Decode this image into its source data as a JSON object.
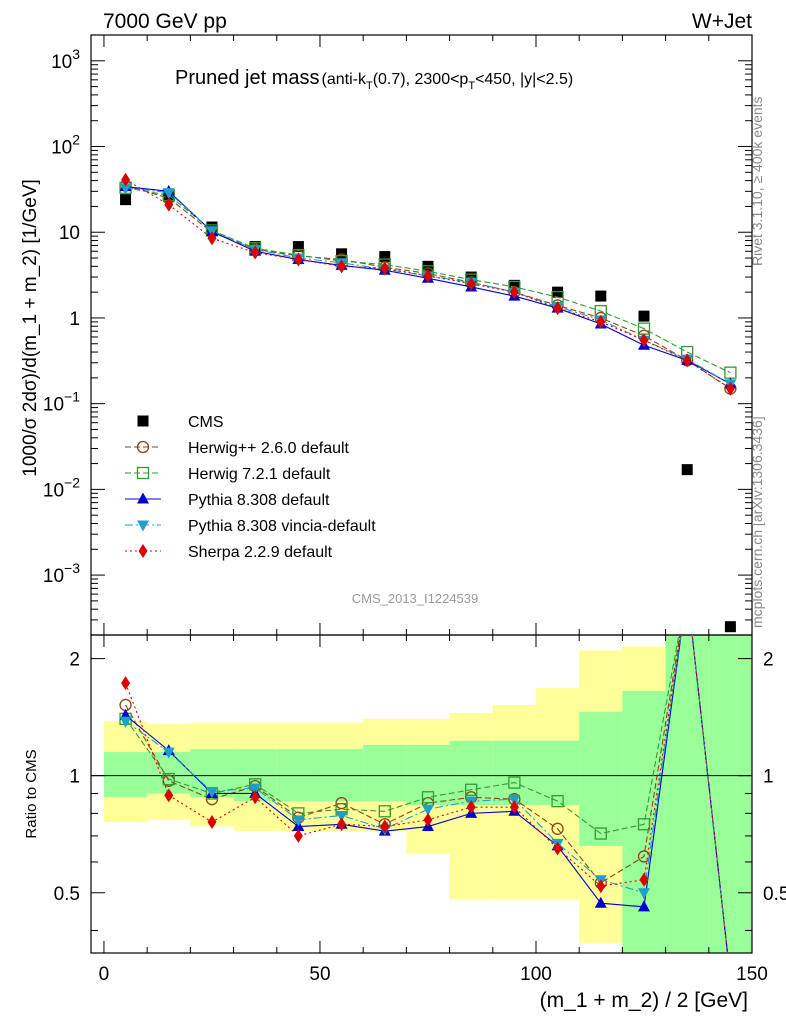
{
  "header": {
    "left": "7000 GeV pp",
    "right": "W+Jet",
    "title_main": "Pruned jet mass",
    "title_sub": "(anti-k",
    "title_sub_k_subscript": "T",
    "title_sub_mid": "(0.7), 2300<p",
    "title_sub_pt_subscript": "T",
    "title_sub_end": "<450, |y|<2.5)",
    "rivet_label": "Rivet 3.1.10, ≥ 400k events",
    "mcplots_label": "mcplots.cern.ch [arXiv:1306.3436]",
    "analysis_id": "CMS_2013_I1224539"
  },
  "chart_data": {
    "type": "scatter",
    "xlabel": "(m_1 + m_2) / 2 [GeV]",
    "ylabel": "1000/σ 2dσ)/d(m_1 + m_2) [1/GeV]",
    "ratio_ylabel": "Ratio to CMS",
    "xlim": [
      -3,
      150
    ],
    "ylim": [
      0.0002,
      2000
    ],
    "yscale": "log",
    "ratio_ylim": [
      0.35,
      2.3
    ],
    "ratio_yscale": "log",
    "x_ticks": [
      "0",
      "50",
      "100",
      "150"
    ],
    "y_ticks": [
      {
        "base": "10",
        "exp": "3"
      },
      {
        "base": "10",
        "exp": "2"
      },
      {
        "base": "10",
        "exp": ""
      },
      {
        "base": "1",
        "exp": ""
      },
      {
        "base": "10",
        "exp": "−1"
      },
      {
        "base": "10",
        "exp": "−2"
      },
      {
        "base": "10",
        "exp": "−3"
      }
    ],
    "ratio_y_ticks": [
      "2",
      "1",
      "0.5"
    ],
    "x": [
      5,
      15,
      25,
      35,
      45,
      55,
      65,
      75,
      85,
      95,
      105,
      115,
      125,
      135,
      145
    ],
    "cms": [
      24,
      26,
      11.5,
      6.8,
      6.8,
      5.6,
      5.2,
      4.0,
      3.0,
      2.4,
      2.0,
      1.8,
      1.05,
      0.017,
      0.00025
    ],
    "band_inner": [
      [
        0.88,
        1.15
      ],
      [
        0.9,
        1.15
      ],
      [
        0.88,
        1.17
      ],
      [
        0.86,
        1.17
      ],
      [
        0.86,
        1.17
      ],
      [
        0.86,
        1.17
      ],
      [
        0.86,
        1.2
      ],
      [
        0.84,
        1.2
      ],
      [
        0.84,
        1.23
      ],
      [
        0.84,
        1.23
      ],
      [
        0.84,
        1.23
      ],
      [
        0.66,
        1.46
      ],
      [
        0.3,
        1.65
      ],
      [
        0.3,
        2.5
      ],
      [
        0.3,
        2.5
      ]
    ],
    "band_outer": [
      [
        0.76,
        1.38
      ],
      [
        0.77,
        1.36
      ],
      [
        0.74,
        1.37
      ],
      [
        0.72,
        1.37
      ],
      [
        0.72,
        1.37
      ],
      [
        0.72,
        1.37
      ],
      [
        0.72,
        1.4
      ],
      [
        0.63,
        1.4
      ],
      [
        0.48,
        1.45
      ],
      [
        0.48,
        1.52
      ],
      [
        0.48,
        1.68
      ],
      [
        0.37,
        2.1
      ],
      [
        0.3,
        2.15
      ],
      [
        0.3,
        2.5
      ],
      [
        0.3,
        2.5
      ]
    ],
    "series": [
      {
        "name": "CMS",
        "color": "#000000",
        "marker": "square"
      },
      {
        "name": "Herwig++ 2.6.0 default",
        "color": "#8b4513",
        "marker": "circle-open",
        "dash": "6,3",
        "values": [
          35,
          25,
          10,
          6.3,
          5.3,
          4.8,
          3.9,
          3.3,
          2.6,
          2.0,
          1.4,
          1.0,
          0.62,
          0.32,
          0.15
        ],
        "ratio": [
          1.52,
          0.97,
          0.87,
          0.94,
          0.78,
          0.85,
          0.75,
          0.85,
          0.88,
          0.87,
          0.73,
          0.53,
          0.62,
          3.0,
          0.3
        ]
      },
      {
        "name": "Herwig 7.2.1 default",
        "color": "#339933",
        "marker": "square-open",
        "dash": "6,3",
        "values": [
          33,
          27,
          10.5,
          6.5,
          5.4,
          4.6,
          4.2,
          3.5,
          2.8,
          2.3,
          1.75,
          1.2,
          0.75,
          0.4,
          0.23
        ],
        "ratio": [
          1.4,
          0.98,
          0.9,
          0.95,
          0.8,
          0.82,
          0.81,
          0.88,
          0.92,
          0.96,
          0.86,
          0.71,
          0.75,
          3.0,
          0.3
        ]
      },
      {
        "name": "Pythia 8.308 default",
        "color": "#0000cc",
        "marker": "triangle-up",
        "dash": "",
        "values": [
          34,
          30,
          10.2,
          6.0,
          4.8,
          4.1,
          3.6,
          2.9,
          2.3,
          1.8,
          1.3,
          0.85,
          0.48,
          0.32,
          0.17
        ],
        "ratio": [
          1.43,
          1.16,
          0.9,
          0.9,
          0.74,
          0.75,
          0.72,
          0.74,
          0.8,
          0.81,
          0.66,
          0.47,
          0.46,
          3.0,
          0.3
        ]
      },
      {
        "name": "Pythia 8.308 vincia-default",
        "color": "#1ea0c8",
        "marker": "triangle-down",
        "dash": "8,3,2,3",
        "values": [
          33,
          29,
          10.4,
          6.3,
          5.0,
          4.4,
          3.7,
          3.1,
          2.6,
          2.0,
          1.35,
          0.95,
          0.55,
          0.33,
          0.17
        ],
        "ratio": [
          1.38,
          1.15,
          0.91,
          0.93,
          0.77,
          0.79,
          0.73,
          0.82,
          0.86,
          0.87,
          0.67,
          0.54,
          0.5,
          3.0,
          0.3
        ]
      },
      {
        "name": "Sherpa 2.2.9 default",
        "color": "#dd0000",
        "marker": "diamond",
        "dash": "2,3",
        "values": [
          41,
          21,
          8.5,
          5.8,
          4.8,
          4.0,
          3.8,
          3.1,
          2.5,
          2.0,
          1.3,
          0.9,
          0.55,
          0.32,
          0.15
        ],
        "ratio": [
          1.73,
          0.89,
          0.76,
          0.88,
          0.7,
          0.75,
          0.74,
          0.77,
          0.83,
          0.83,
          0.65,
          0.52,
          0.54,
          3.0,
          0.3
        ]
      }
    ]
  }
}
